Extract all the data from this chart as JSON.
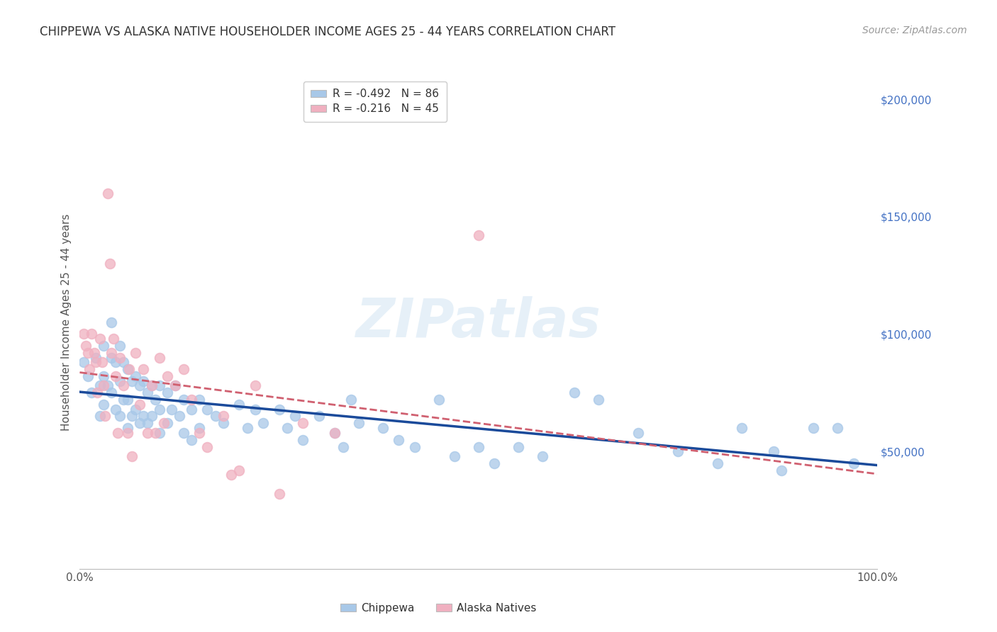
{
  "title": "CHIPPEWA VS ALASKA NATIVE HOUSEHOLDER INCOME AGES 25 - 44 YEARS CORRELATION CHART",
  "source": "Source: ZipAtlas.com",
  "ylabel": "Householder Income Ages 25 - 44 years",
  "xlim": [
    0,
    1.0
  ],
  "ylim": [
    0,
    210000
  ],
  "yticks": [
    50000,
    100000,
    150000,
    200000
  ],
  "ytick_labels": [
    "$50,000",
    "$100,000",
    "$150,000",
    "$200,000"
  ],
  "background_color": "#ffffff",
  "grid_color": "#d0d0d0",
  "watermark": "ZIPatlas",
  "legend_r1": "R = -0.492",
  "legend_n1": "N = 86",
  "legend_r2": "R = -0.216",
  "legend_n2": "N = 45",
  "chippewa_color": "#a8c8e8",
  "alaska_color": "#f0b0c0",
  "trend_blue": "#1a4a9a",
  "trend_pink": "#d06070",
  "chippewa_x": [
    0.005,
    0.01,
    0.015,
    0.02,
    0.025,
    0.025,
    0.03,
    0.03,
    0.03,
    0.035,
    0.04,
    0.04,
    0.04,
    0.045,
    0.045,
    0.05,
    0.05,
    0.05,
    0.055,
    0.055,
    0.06,
    0.06,
    0.06,
    0.065,
    0.065,
    0.07,
    0.07,
    0.075,
    0.075,
    0.08,
    0.08,
    0.085,
    0.085,
    0.09,
    0.09,
    0.095,
    0.1,
    0.1,
    0.1,
    0.11,
    0.11,
    0.115,
    0.12,
    0.125,
    0.13,
    0.13,
    0.14,
    0.14,
    0.15,
    0.15,
    0.16,
    0.17,
    0.18,
    0.2,
    0.21,
    0.22,
    0.23,
    0.25,
    0.26,
    0.27,
    0.28,
    0.3,
    0.32,
    0.33,
    0.34,
    0.35,
    0.38,
    0.4,
    0.42,
    0.45,
    0.47,
    0.5,
    0.52,
    0.55,
    0.58,
    0.62,
    0.65,
    0.7,
    0.75,
    0.8,
    0.83,
    0.87,
    0.88,
    0.92,
    0.95,
    0.97
  ],
  "chippewa_y": [
    88000,
    82000,
    75000,
    90000,
    78000,
    65000,
    95000,
    82000,
    70000,
    78000,
    105000,
    90000,
    75000,
    88000,
    68000,
    95000,
    80000,
    65000,
    88000,
    72000,
    85000,
    72000,
    60000,
    80000,
    65000,
    82000,
    68000,
    78000,
    62000,
    80000,
    65000,
    75000,
    62000,
    78000,
    65000,
    72000,
    78000,
    68000,
    58000,
    75000,
    62000,
    68000,
    78000,
    65000,
    72000,
    58000,
    68000,
    55000,
    72000,
    60000,
    68000,
    65000,
    62000,
    70000,
    60000,
    68000,
    62000,
    68000,
    60000,
    65000,
    55000,
    65000,
    58000,
    52000,
    72000,
    62000,
    60000,
    55000,
    52000,
    72000,
    48000,
    52000,
    45000,
    52000,
    48000,
    75000,
    72000,
    58000,
    50000,
    45000,
    60000,
    50000,
    42000,
    60000,
    60000,
    45000
  ],
  "alaska_x": [
    0.005,
    0.008,
    0.01,
    0.012,
    0.015,
    0.018,
    0.02,
    0.022,
    0.025,
    0.028,
    0.03,
    0.032,
    0.035,
    0.038,
    0.04,
    0.042,
    0.045,
    0.048,
    0.05,
    0.055,
    0.06,
    0.062,
    0.065,
    0.07,
    0.075,
    0.08,
    0.085,
    0.09,
    0.095,
    0.1,
    0.105,
    0.11,
    0.12,
    0.13,
    0.14,
    0.15,
    0.16,
    0.18,
    0.19,
    0.2,
    0.22,
    0.25,
    0.28,
    0.32,
    0.5
  ],
  "alaska_y": [
    100000,
    95000,
    92000,
    85000,
    100000,
    92000,
    88000,
    75000,
    98000,
    88000,
    78000,
    65000,
    160000,
    130000,
    92000,
    98000,
    82000,
    58000,
    90000,
    78000,
    58000,
    85000,
    48000,
    92000,
    70000,
    85000,
    58000,
    78000,
    58000,
    90000,
    62000,
    82000,
    78000,
    85000,
    72000,
    58000,
    52000,
    65000,
    40000,
    42000,
    78000,
    32000,
    62000,
    58000,
    142000
  ]
}
